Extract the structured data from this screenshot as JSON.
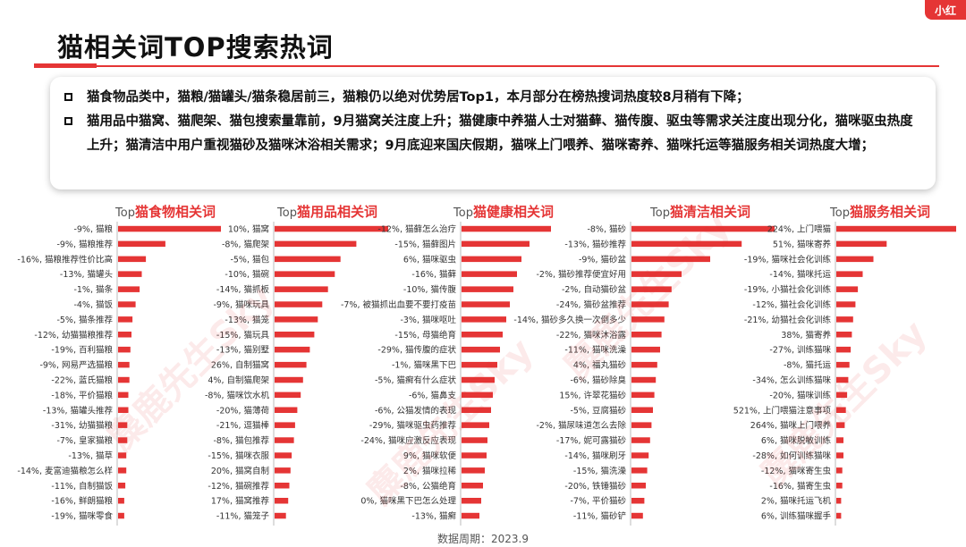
{
  "badge": "小红",
  "title": "猫相关词TOP搜索热词",
  "summary": [
    "猫食物品类中，猫粮/猫罐头/猫条稳居前三，猫粮仍以绝对优势居Top1，本月部分在榜热搜词热度较8月稍有下降；",
    "猫用品中猫窝、猫爬架、猫包搜索量靠前，9月猫窝关注度上升；猫健康中养猫人士对猫藓、猫传腹、驱虫等需求关注度出现分化，猫咪驱虫热度上升；猫清洁中用户重视猫砂及猫咪沐浴相关需求；9月底迎来国庆假期，猫咪上门喂养、猫咪寄养、猫咪托运等猫服务相关词热度大增；"
  ],
  "footer": "数据周期：2023.9",
  "watermark": "麋鹿先生Sky",
  "colors": {
    "accent": "#e53535",
    "bar": "#e53535"
  },
  "chart_data": [
    {
      "type": "bar",
      "title_prefix": "Top",
      "title": "猫食物相关词",
      "labels": [
        "-9%, 猫粮",
        "-9%, 猫粮推荐",
        "-16%, 猫粮推荐性价比高",
        "-13%, 猫罐头",
        "-1%, 猫条",
        "-4%, 猫饭",
        "-5%, 猫条推荐",
        "-12%, 幼猫猫粮推荐",
        "-19%, 百利猫粮",
        "-9%, 网易严选猫粮",
        "-22%, 蓝氏猫粮",
        "-18%, 平价猫粮",
        "-13%, 猫罐头推荐",
        "-31%, 幼猫猫粮",
        "-7%, 皇家猫粮",
        "-13%, 猫草",
        "-14%, 麦富迪猫粮怎么样",
        "-11%, 自制猫饭",
        "-16%, 鲜朗猫粮",
        "-19%, 猫咪零食"
      ],
      "values": [
        100,
        46,
        27,
        23,
        21,
        17,
        14,
        13,
        12,
        11,
        11,
        10,
        10,
        9,
        9,
        8,
        8,
        7,
        6,
        6
      ]
    },
    {
      "type": "bar",
      "title_prefix": "Top",
      "title": "猫用品相关词",
      "labels": [
        "10%, 猫窝",
        "-8%, 猫爬架",
        "-5%, 猫包",
        "-10%, 猫碗",
        "-14%, 猫抓板",
        "-9%, 猫咪玩具",
        "-13%, 猫笼",
        "-15%, 猫玩具",
        "-13%, 猫别墅",
        "26%, 自制猫窝",
        "4%, 自制猫爬架",
        "-8%, 猫咪饮水机",
        "-20%, 猫薄荷",
        "-21%, 逗猫棒",
        "-8%, 猫包推荐",
        "-15%, 猫咪衣服",
        "20%, 猫窝自制",
        "-12%, 猫碗推荐",
        "17%, 猫窝推荐",
        "-11%, 猫笼子"
      ],
      "values": [
        100,
        72,
        58,
        53,
        47,
        42,
        38,
        35,
        31,
        28,
        25,
        23,
        20,
        18,
        17,
        15,
        14,
        13,
        12,
        10
      ]
    },
    {
      "type": "bar",
      "title_prefix": "Top",
      "title": "猫健康相关词",
      "labels": [
        "-12%, 猫藓怎么治疗",
        "-15%, 猫藓图片",
        "6%, 猫咪驱虫",
        "-16%, 猫藓",
        "-10%, 猫传腹",
        "-7%, 被猫抓出血要不要打疫苗",
        "-3%, 猫咪呕吐",
        "-15%, 母猫绝育",
        "-29%, 猫传腹的症状",
        "-1%, 猫咪黑下巴",
        "-5%, 猫癣有什么症状",
        "-6%, 猫鼻支",
        "-6%, 公猫发情的表现",
        "-29%, 猫咪驱虫药推荐",
        "-24%, 猫咪应激反应表现",
        "9%, 猫咪软便",
        "2%, 猫咪拉稀",
        "-8%, 公猫绝育",
        "0%, 猫咪黑下巴怎么处理",
        "-13%, 猫癣"
      ],
      "values": [
        100,
        76,
        67,
        62,
        58,
        54,
        50,
        46,
        43,
        40,
        37,
        35,
        33,
        31,
        29,
        28,
        26,
        24,
        22,
        20
      ]
    },
    {
      "type": "bar",
      "title_prefix": "Top",
      "title": "猫清洁相关词",
      "labels": [
        "-8%, 猫砂",
        "-13%, 猫砂推荐",
        "-9%, 猫砂盆",
        "-2%, 猫砂推荐便宜好用",
        "-2%, 自动猫砂盆",
        "-24%, 猫砂盆推荐",
        "-14%, 猫砂多久换一次倒多少",
        "-22%, 猫咪沐浴露",
        "-11%, 猫咪洗澡",
        "4%, 福丸猫砂",
        "-6%, 猫砂除臭",
        "15%, 许翠花猫砂",
        "-5%, 豆腐猫砂",
        "-2%, 猫尿味道怎么去除",
        "-17%, 妮可露猫砂",
        "-14%, 猫咪刷牙",
        "-15%, 猫洗澡",
        "-20%, 铁锤猫砂",
        "-7%, 平价猫砂",
        "-11%, 猫砂铲"
      ],
      "values": [
        100,
        77,
        55,
        35,
        28,
        26,
        23,
        21,
        20,
        18,
        17,
        16,
        15,
        14,
        13,
        12,
        11,
        10,
        9,
        8
      ]
    },
    {
      "type": "bar",
      "title_prefix": "Top",
      "title": "猫服务相关词",
      "labels": [
        "224%, 上门喂猫",
        "51%, 猫咪寄养",
        "-19%, 猫咪社会化训练",
        "-14%, 猫咪托运",
        "-19%, 小猫社会化训练",
        "-12%, 猫社会化训练",
        "-21%, 幼猫社会化训练",
        "38%, 猫寄养",
        "-27%, 训练猫咪",
        "-8%, 猫托运",
        "-34%, 怎么训练猫咪",
        "-20%, 猫咪训练",
        "521%, 上门喂猫注意事项",
        "264%, 猫咪上门喂养",
        "6%, 猫咪脱敏训练",
        "-28%, 如何训练猫咪",
        "-12%, 猫咪寄生虫",
        "-16%, 猫寄生虫",
        "2%, 猫咪托运飞机",
        "6%, 训练猫咪握手"
      ],
      "values": [
        100,
        42,
        31,
        22,
        18,
        16,
        14,
        13,
        12,
        11,
        10,
        9,
        8,
        7,
        6,
        6,
        5,
        5,
        4,
        4
      ]
    }
  ]
}
